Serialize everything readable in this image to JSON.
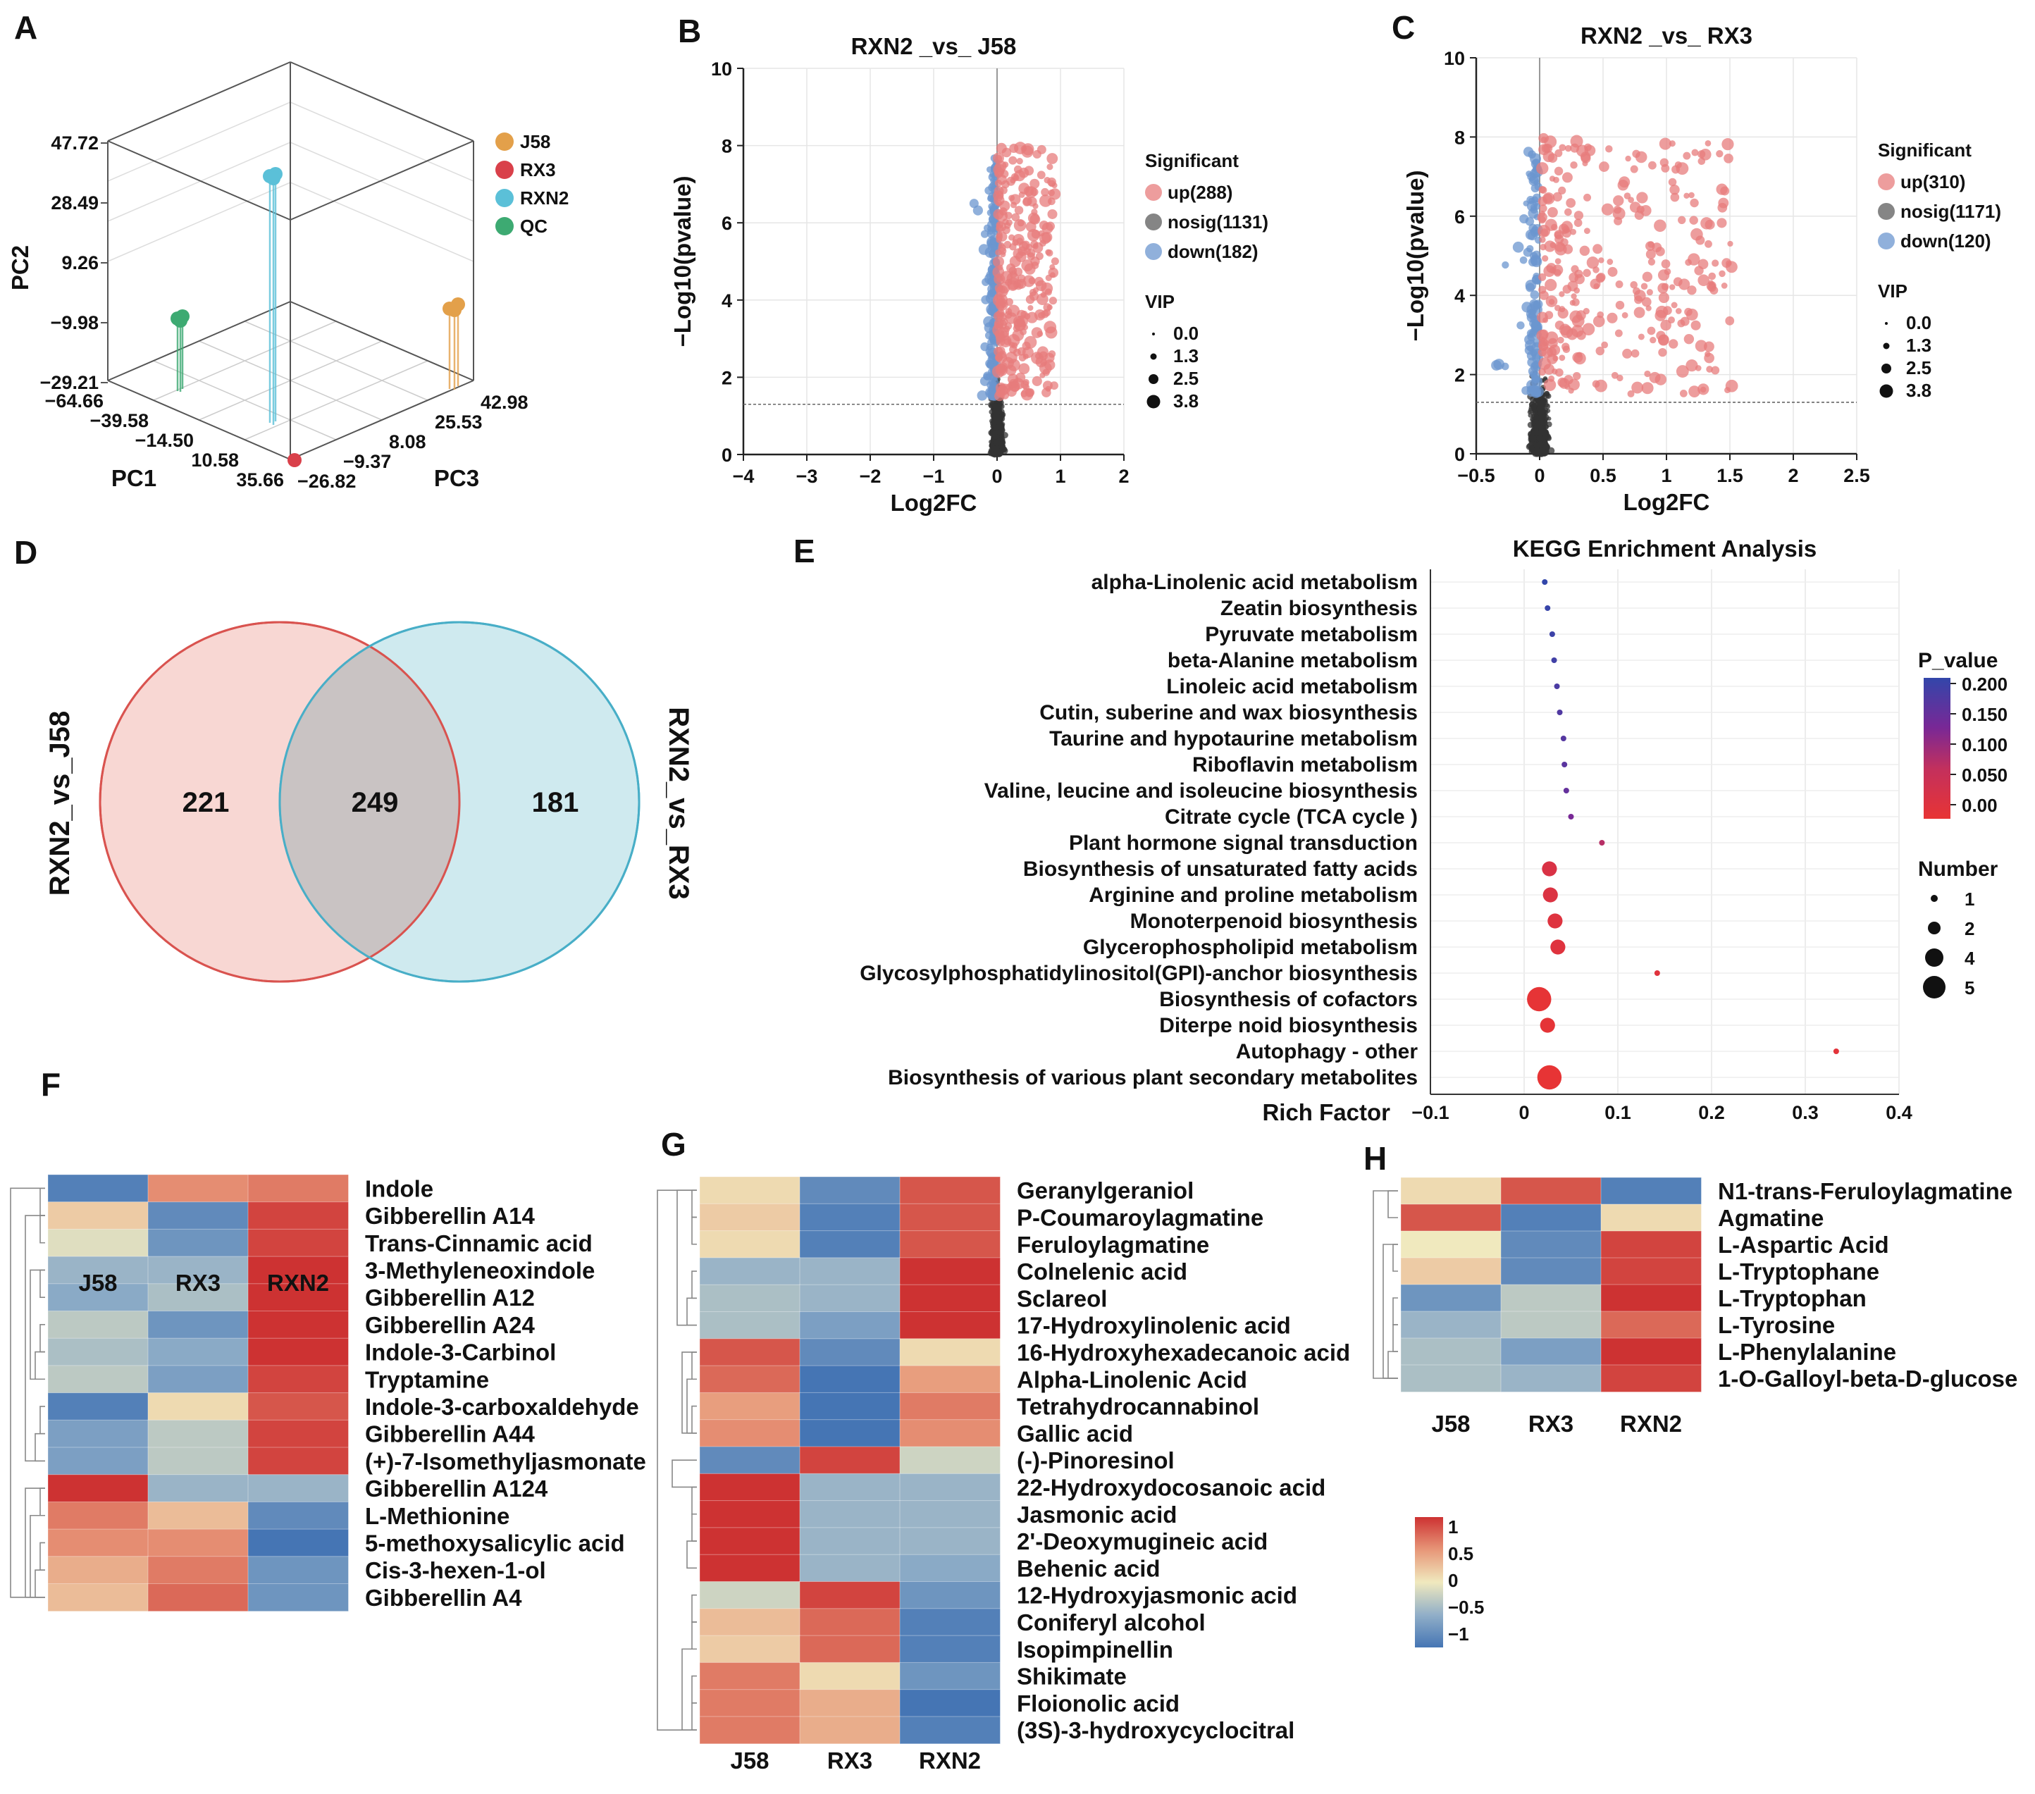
{
  "panel_labels": [
    "A",
    "B",
    "C",
    "D",
    "E",
    "F",
    "G",
    "H"
  ],
  "colors": {
    "up": "#e77c7c",
    "down": "#6b95cf",
    "nosig": "#333333",
    "venn_left": "#f5c9c4",
    "venn_right": "#bfe3ea",
    "venn_overlap": "#c9c3c3",
    "venn_left_stroke": "#d9534f",
    "venn_right_stroke": "#48aec7"
  },
  "chart_data": [
    {
      "id": "A",
      "type": "scatter3d",
      "xlabel": "PC1",
      "ylabel": "PC2",
      "zlabel": "PC3",
      "pc1_ticks": [
        "-64.66",
        "-39.58",
        "-14.50",
        "10.58",
        "35.66"
      ],
      "pc2_ticks": [
        "47.72",
        "28.49",
        "9.26",
        "-9.98",
        "-29.21"
      ],
      "pc3_ticks": [
        "-26.82",
        "-9.37",
        "8.08",
        "25.53",
        "42.98"
      ],
      "legend": [
        {
          "name": "J58",
          "color": "#e3a04a"
        },
        {
          "name": "RX3",
          "color": "#d9404a"
        },
        {
          "name": "RXN2",
          "color": "#5bc0d8"
        },
        {
          "name": "QC",
          "color": "#3daa72"
        }
      ]
    },
    {
      "id": "B",
      "type": "scatter",
      "title": "RXN2 _vs_ J58",
      "xlabel": "Log2FC",
      "ylabel": "-Log10(pvalue)",
      "xlim": [
        -4,
        2
      ],
      "ylim": [
        0,
        10
      ],
      "xticks": [
        -4,
        -3,
        -2,
        -1,
        0,
        1,
        2
      ],
      "yticks": [
        0,
        2,
        4,
        6,
        8,
        10
      ],
      "threshold": 1.3,
      "legend_title": "Significant",
      "legend": [
        {
          "label": "up(288)",
          "key": "up"
        },
        {
          "label": "nosig(1131)",
          "key": "nosig"
        },
        {
          "label": "down(182)",
          "key": "down"
        }
      ],
      "vip_title": "VIP",
      "vip_labels": [
        "0.0",
        "1.3",
        "2.5",
        "3.8"
      ],
      "counts": {
        "up": 288,
        "nosig": 1131,
        "down": 182
      }
    },
    {
      "id": "C",
      "type": "scatter",
      "title": "RXN2 _vs_ RX3",
      "xlabel": "Log2FC",
      "ylabel": "-Log10(pvalue)",
      "xlim": [
        -0.5,
        2.5
      ],
      "ylim": [
        0,
        10
      ],
      "xticks": [
        -0.5,
        0,
        0.5,
        1,
        1.5,
        2,
        2.5
      ],
      "yticks": [
        0,
        2,
        4,
        6,
        8,
        10
      ],
      "threshold": 1.3,
      "legend_title": "Significant",
      "legend": [
        {
          "label": "up(310)",
          "key": "up"
        },
        {
          "label": "nosig(1171)",
          "key": "nosig"
        },
        {
          "label": "down(120)",
          "key": "down"
        }
      ],
      "vip_title": "VIP",
      "vip_labels": [
        "0.0",
        "1.3",
        "2.5",
        "3.8"
      ],
      "counts": {
        "up": 310,
        "nosig": 1171,
        "down": 120
      }
    },
    {
      "id": "D",
      "type": "venn",
      "sets": [
        "RXN2_vs_J58",
        "RXN2_vs_RX3"
      ],
      "left_only": "221",
      "overlap": "249",
      "right_only": "181"
    },
    {
      "id": "E",
      "type": "scatter",
      "title": "KEGG Enrichment Analysis",
      "xlabel": "Rich Factor",
      "xlim": [
        -0.1,
        0.4
      ],
      "xticks": [
        "-0.1",
        "0",
        "0.1",
        "0.2",
        "0.3",
        "0.4"
      ],
      "pathways": [
        {
          "name": "alpha-Linolenic acid metabolism",
          "rich": 0.022,
          "number": 1,
          "p": 0.2
        },
        {
          "name": "Zeatin biosynthesis",
          "rich": 0.025,
          "number": 1,
          "p": 0.195
        },
        {
          "name": "Pyruvate metabolism",
          "rich": 0.03,
          "number": 1,
          "p": 0.19
        },
        {
          "name": "beta-Alanine metabolism",
          "rich": 0.032,
          "number": 1,
          "p": 0.185
        },
        {
          "name": "Linoleic acid metabolism",
          "rich": 0.035,
          "number": 1,
          "p": 0.175
        },
        {
          "name": "Cutin, suberine and wax biosynthesis",
          "rich": 0.038,
          "number": 1,
          "p": 0.17
        },
        {
          "name": "Taurine and hypotaurine metabolism",
          "rich": 0.042,
          "number": 1,
          "p": 0.165
        },
        {
          "name": "Riboflavin metabolism",
          "rich": 0.043,
          "number": 1,
          "p": 0.16
        },
        {
          "name": "Valine, leucine and isoleucine biosynthesis",
          "rich": 0.045,
          "number": 1,
          "p": 0.15
        },
        {
          "name": "Citrate cycle (TCA cycle )",
          "rich": 0.05,
          "number": 1,
          "p": 0.13
        },
        {
          "name": "Plant hormone signal transduction",
          "rich": 0.083,
          "number": 1,
          "p": 0.08
        },
        {
          "name": "Biosynthesis of unsaturated fatty acids",
          "rich": 0.027,
          "number": 3,
          "p": 0.03
        },
        {
          "name": "Arginine and proline metabolism",
          "rich": 0.028,
          "number": 3,
          "p": 0.025
        },
        {
          "name": "Monoterpenoid biosynthesis",
          "rich": 0.033,
          "number": 3,
          "p": 0.02
        },
        {
          "name": "Glycerophospholipid metabolism",
          "rich": 0.036,
          "number": 3,
          "p": 0.018
        },
        {
          "name": "Glycosylphosphatidylinositol(GPI)-anchor biosynthesis",
          "rich": 0.142,
          "number": 1,
          "p": 0.015
        },
        {
          "name": "Biosynthesis of cofactors",
          "rich": 0.016,
          "number": 5,
          "p": 0.003
        },
        {
          "name": "Diterpe noid biosynthesis",
          "rich": 0.025,
          "number": 3,
          "p": 0.005
        },
        {
          "name": "Autophagy - other",
          "rich": 0.333,
          "number": 1,
          "p": 0.01
        },
        {
          "name": "Biosynthesis of various plant secondary metabolites",
          "rich": 0.027,
          "number": 5,
          "p": 0.002
        }
      ],
      "pvalue_legend_title": "P_value",
      "pvalue_labels": [
        "0.200",
        "0.150",
        "0.100",
        "0.050",
        "0.00"
      ],
      "number_legend_title": "Number",
      "number_labels": [
        "1",
        "2",
        "4",
        "5"
      ]
    },
    {
      "id": "F",
      "type": "heatmap",
      "columns": [
        "J58",
        "RX3",
        "RXN2"
      ],
      "rows": [
        {
          "name": "Indole",
          "v": [
            -1.0,
            0.6,
            0.7
          ]
        },
        {
          "name": "Gibberellin A14",
          "v": [
            0.2,
            -0.9,
            1.0
          ]
        },
        {
          "name": "Trans-Cinnamic acid",
          "v": [
            -0.1,
            -0.8,
            1.0
          ]
        },
        {
          "name": "3-Methyleneoxindole",
          "v": [
            -0.5,
            -0.5,
            1.1
          ]
        },
        {
          "name": "Gibberellin A12",
          "v": [
            -0.6,
            -0.4,
            1.1
          ]
        },
        {
          "name": "Gibberellin A24",
          "v": [
            -0.3,
            -0.8,
            1.1
          ]
        },
        {
          "name": "Indole-3-Carbinol",
          "v": [
            -0.4,
            -0.6,
            1.1
          ]
        },
        {
          "name": "Tryptamine",
          "v": [
            -0.3,
            -0.7,
            1.0
          ]
        },
        {
          "name": "Indole-3-carboxaldehyde",
          "v": [
            -1.0,
            0.1,
            0.9
          ]
        },
        {
          "name": "Gibberellin A44",
          "v": [
            -0.7,
            -0.3,
            1.0
          ]
        },
        {
          "name": "(+)-7-Isomethyljasmonate",
          "v": [
            -0.7,
            -0.3,
            1.0
          ]
        },
        {
          "name": "Gibberellin A124",
          "v": [
            1.1,
            -0.5,
            -0.5
          ]
        },
        {
          "name": "L-Methionine",
          "v": [
            0.7,
            0.3,
            -0.9
          ]
        },
        {
          "name": "5-methoxysalicylic acid",
          "v": [
            0.6,
            0.6,
            -1.1
          ]
        },
        {
          "name": "Cis-3-hexen-1-ol",
          "v": [
            0.4,
            0.7,
            -0.8
          ]
        },
        {
          "name": "Gibberellin A4",
          "v": [
            0.3,
            0.8,
            -0.8
          ]
        }
      ]
    },
    {
      "id": "G",
      "type": "heatmap",
      "columns": [
        "J58",
        "RX3",
        "RXN2"
      ],
      "rows": [
        {
          "name": "Geranylgeraniol",
          "v": [
            0.1,
            -0.9,
            0.9
          ]
        },
        {
          "name": "P-Coumaroylagmatine",
          "v": [
            0.2,
            -1.0,
            0.9
          ]
        },
        {
          "name": "Feruloylagmatine",
          "v": [
            0.1,
            -1.0,
            0.9
          ]
        },
        {
          "name": "Colnelenic acid",
          "v": [
            -0.5,
            -0.5,
            1.1
          ]
        },
        {
          "name": "Sclareol",
          "v": [
            -0.4,
            -0.5,
            1.1
          ]
        },
        {
          "name": "17-Hydroxylinolenic acid",
          "v": [
            -0.4,
            -0.7,
            1.1
          ]
        },
        {
          "name": "16-Hydroxyhexadecanoic acid",
          "v": [
            0.9,
            -0.9,
            0.1
          ]
        },
        {
          "name": "Alpha-Linolenic Acid",
          "v": [
            0.8,
            -1.1,
            0.5
          ]
        },
        {
          "name": "Tetrahydrocannabinol",
          "v": [
            0.5,
            -1.1,
            0.7
          ]
        },
        {
          "name": "Gallic acid",
          "v": [
            0.6,
            -1.1,
            0.6
          ]
        },
        {
          "name": "(-)-Pinoresinol",
          "v": [
            -0.9,
            1.0,
            -0.2
          ]
        },
        {
          "name": "22-Hydroxydocosanoic acid",
          "v": [
            1.1,
            -0.5,
            -0.5
          ]
        },
        {
          "name": "Jasmonic acid",
          "v": [
            1.1,
            -0.5,
            -0.5
          ]
        },
        {
          "name": "2'-Deoxymugineic acid",
          "v": [
            1.1,
            -0.5,
            -0.5
          ]
        },
        {
          "name": "Behenic acid",
          "v": [
            1.1,
            -0.5,
            -0.6
          ]
        },
        {
          "name": "12-Hydroxyjasmonic acid",
          "v": [
            -0.2,
            1.0,
            -0.8
          ]
        },
        {
          "name": "Coniferyl alcohol",
          "v": [
            0.3,
            0.8,
            -1.0
          ]
        },
        {
          "name": "Isopimpinellin",
          "v": [
            0.2,
            0.8,
            -1.0
          ]
        },
        {
          "name": "Shikimate",
          "v": [
            0.7,
            0.1,
            -0.8
          ]
        },
        {
          "name": "Floionolic acid",
          "v": [
            0.7,
            0.4,
            -1.1
          ]
        },
        {
          "name": "(3S)-3-hydroxycyclocitral",
          "v": [
            0.7,
            0.4,
            -1.0
          ]
        }
      ]
    },
    {
      "id": "H",
      "type": "heatmap",
      "columns": [
        "J58",
        "RX3",
        "RXN2"
      ],
      "rows": [
        {
          "name": "N1-trans-Feruloylagmatine",
          "v": [
            0.1,
            0.9,
            -1.0
          ]
        },
        {
          "name": "Agmatine",
          "v": [
            0.9,
            -1.0,
            0.1
          ]
        },
        {
          "name": "L-Aspartic Acid",
          "v": [
            0.0,
            -0.9,
            1.0
          ]
        },
        {
          "name": "L-Tryptophane",
          "v": [
            0.2,
            -0.9,
            1.0
          ]
        },
        {
          "name": "L-Tryptophan",
          "v": [
            -0.8,
            -0.3,
            1.1
          ]
        },
        {
          "name": "L-Tyrosine",
          "v": [
            -0.5,
            -0.3,
            0.8
          ]
        },
        {
          "name": "L-Phenylalanine",
          "v": [
            -0.4,
            -0.7,
            1.1
          ]
        },
        {
          "name": "1-O-Galloyl-beta-D-glucose",
          "v": [
            -0.4,
            -0.5,
            1.0
          ]
        }
      ],
      "colorbar_labels": [
        "1",
        "0.5",
        "0",
        "-0.5",
        "-1"
      ]
    }
  ]
}
